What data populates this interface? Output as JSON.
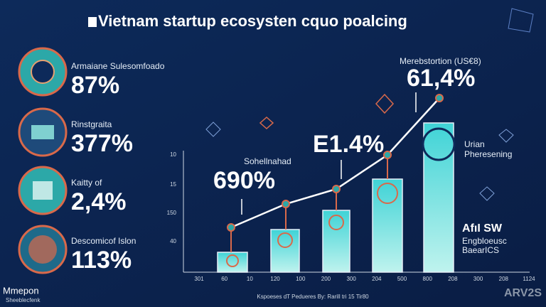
{
  "header": {
    "title": "Vietnam startup ecosysten cquo poalcing"
  },
  "stats": [
    {
      "label": "Armaiane Sulesomfoado",
      "value": "87%"
    },
    {
      "label": "Rinstgraita",
      "value": "377%"
    },
    {
      "label": "Kaitty of",
      "value": "2,4%"
    },
    {
      "label": "Descomicof Islon",
      "value": "113%"
    }
  ],
  "chart": {
    "annotations": [
      {
        "label": "Sohellnahad",
        "value": "690%"
      },
      {
        "value": "E1.4%"
      },
      {
        "label": "Merebstortion (US€8)",
        "value": "61,4%"
      }
    ],
    "y_labels": [
      "10",
      "15",
      "150",
      "40"
    ],
    "x_labels": [
      "301",
      "60",
      "10",
      "120",
      "100",
      "200",
      "300",
      "204",
      "500",
      "800",
      "208",
      "300",
      "208",
      "1124"
    ],
    "side_notes": [
      {
        "title": "Urian",
        "text": "Pheresening"
      },
      {
        "title": "AfıI SW",
        "text": "Engbloeusc",
        "extra": "BaearICS"
      }
    ],
    "source": "Kspoeses dT Pedueres By: Rarill tri 15 Tir80"
  },
  "footer": {
    "logo": "Mmepon",
    "tagline": "Sheeblecfenk",
    "brand": "ARV2S"
  }
}
